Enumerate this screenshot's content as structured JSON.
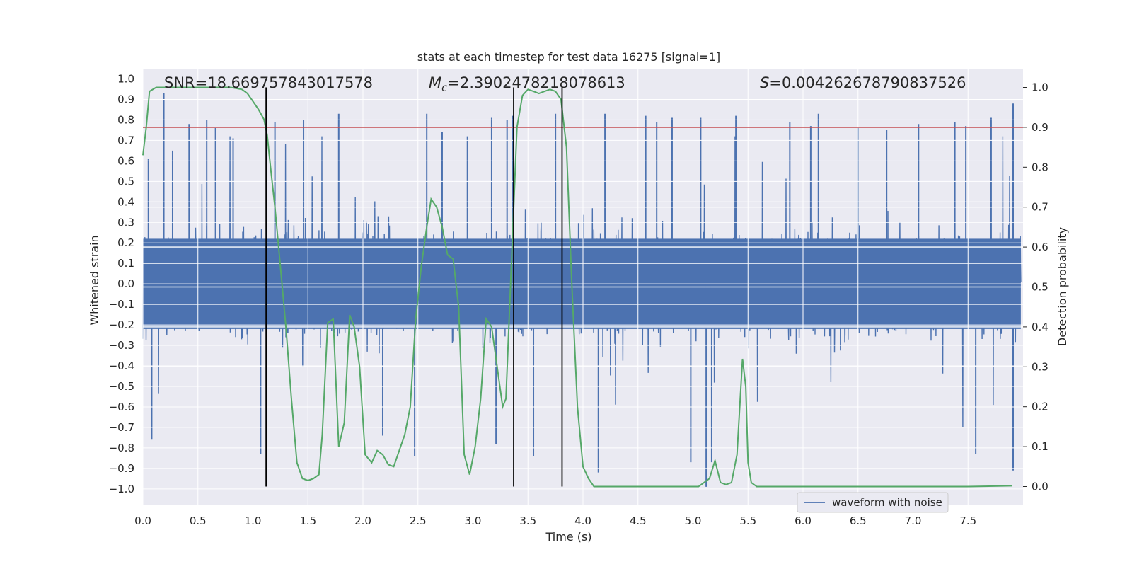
{
  "chart_data": {
    "type": "line",
    "title": "stats at each timestep for test data 16275 [signal=1]",
    "xlabel": "Time (s)",
    "ylabel": "Whitened strain",
    "y2label": "Detection probability",
    "xlim": [
      0.0,
      8.0
    ],
    "ylim": [
      -1.08,
      1.05
    ],
    "y2lim": [
      -0.047,
      1.047
    ],
    "xticks": [
      0.0,
      0.5,
      1.0,
      1.5,
      2.0,
      2.5,
      3.0,
      3.5,
      4.0,
      4.5,
      5.0,
      5.5,
      6.0,
      6.5,
      7.0,
      7.5
    ],
    "xtick_labels": [
      "0.0",
      "0.5",
      "1.0",
      "1.5",
      "2.0",
      "2.5",
      "3.0",
      "3.5",
      "4.0",
      "4.5",
      "5.0",
      "5.5",
      "6.0",
      "6.5",
      "7.0",
      "7.5"
    ],
    "yticks": [
      1.0,
      0.9,
      0.8,
      0.7,
      0.6,
      0.5,
      0.4,
      0.3,
      0.2,
      0.1,
      0.0,
      -0.1,
      -0.2,
      -0.3,
      -0.4,
      -0.5,
      -0.6,
      -0.7,
      -0.8,
      -0.9,
      -1.0
    ],
    "ytick_labels": [
      "1.0",
      "0.9",
      "0.8",
      "0.7",
      "0.6",
      "0.5",
      "0.4",
      "0.3",
      "0.2",
      "0.1",
      "0.0",
      "−0.1",
      "−0.2",
      "−0.3",
      "−0.4",
      "−0.5",
      "−0.6",
      "−0.7",
      "−0.8",
      "−0.9",
      "−1.0"
    ],
    "y2ticks": [
      1.0,
      0.9,
      0.8,
      0.7,
      0.6,
      0.5,
      0.4,
      0.3,
      0.2,
      0.1,
      0.0
    ],
    "y2tick_labels": [
      "1.0",
      "0.9",
      "0.8",
      "0.7",
      "0.6",
      "0.5",
      "0.4",
      "0.3",
      "0.2",
      "0.1",
      "0.0"
    ],
    "annotations": [
      {
        "name": "snr",
        "text": "SNR=18.669757843017578"
      },
      {
        "name": "mc",
        "prefix": "M",
        "sub": "c",
        "text": "=2.3902478218078613"
      },
      {
        "name": "s",
        "prefix": "S",
        "text": "=0.004262678790837526"
      }
    ],
    "threshold": {
      "value": 0.9,
      "axis": "y2",
      "color": "#c44e52"
    },
    "event_markers": [
      1.12,
      3.37,
      3.81
    ],
    "legend": {
      "label": "waveform with noise",
      "location": "lower-right"
    },
    "colors": {
      "waveform": "#4c72b0",
      "probability": "#55a868",
      "threshold": "#c44e52",
      "marker": "#000000",
      "background": "#eaeaf2",
      "grid": "#ffffff"
    },
    "series": [
      {
        "name": "waveform with noise",
        "axis": "y",
        "description_envelope": "dense noisy waveform, bulk within about ±0.3, peaks to about ±0.9",
        "spikes": [
          [
            0.05,
            0.61
          ],
          [
            0.08,
            -0.76
          ],
          [
            0.19,
            0.93
          ],
          [
            0.27,
            0.65
          ],
          [
            0.42,
            0.78
          ],
          [
            0.58,
            0.8
          ],
          [
            0.66,
            0.76
          ],
          [
            0.82,
            0.71
          ],
          [
            1.07,
            -0.83
          ],
          [
            1.2,
            0.79
          ],
          [
            1.46,
            0.8
          ],
          [
            1.78,
            0.83
          ],
          [
            2.18,
            -0.74
          ],
          [
            2.47,
            -0.84
          ],
          [
            2.58,
            0.83
          ],
          [
            2.72,
            0.74
          ],
          [
            2.95,
            0.72
          ],
          [
            3.17,
            0.81
          ],
          [
            3.21,
            -0.78
          ],
          [
            3.31,
            0.8
          ],
          [
            3.36,
            0.82
          ],
          [
            3.55,
            -0.84
          ],
          [
            3.75,
            0.83
          ],
          [
            4.14,
            -0.92
          ],
          [
            4.2,
            0.83
          ],
          [
            4.57,
            0.82
          ],
          [
            4.67,
            0.79
          ],
          [
            4.81,
            0.81
          ],
          [
            4.98,
            -0.87
          ],
          [
            5.07,
            0.81
          ],
          [
            5.12,
            -0.99
          ],
          [
            5.17,
            -0.87
          ],
          [
            5.39,
            0.82
          ],
          [
            5.88,
            0.79
          ],
          [
            6.07,
            0.77
          ],
          [
            6.14,
            0.83
          ],
          [
            6.5,
            0.76
          ],
          [
            6.76,
            0.75
          ],
          [
            7.05,
            0.78
          ],
          [
            7.38,
            0.79
          ],
          [
            7.48,
            0.77
          ],
          [
            7.57,
            -0.83
          ],
          [
            7.71,
            0.81
          ],
          [
            7.91,
            0.88
          ],
          [
            7.91,
            -0.91
          ]
        ]
      },
      {
        "name": "detection probability",
        "axis": "y2",
        "x": [
          0.0,
          0.03,
          0.06,
          0.12,
          0.2,
          0.3,
          0.4,
          0.5,
          0.6,
          0.7,
          0.8,
          0.9,
          0.95,
          1.0,
          1.05,
          1.1,
          1.13,
          1.16,
          1.2,
          1.25,
          1.3,
          1.35,
          1.4,
          1.45,
          1.5,
          1.55,
          1.6,
          1.63,
          1.68,
          1.73,
          1.78,
          1.83,
          1.88,
          1.92,
          1.97,
          2.02,
          2.08,
          2.13,
          2.18,
          2.23,
          2.28,
          2.33,
          2.38,
          2.43,
          2.48,
          2.53,
          2.58,
          2.62,
          2.67,
          2.72,
          2.77,
          2.82,
          2.87,
          2.92,
          2.97,
          3.02,
          3.07,
          3.12,
          3.17,
          3.22,
          3.27,
          3.3,
          3.35,
          3.4,
          3.45,
          3.5,
          3.55,
          3.6,
          3.65,
          3.7,
          3.75,
          3.8,
          3.85,
          3.9,
          3.95,
          4.0,
          4.05,
          4.1,
          4.15,
          4.25,
          4.5,
          4.8,
          5.0,
          5.05,
          5.1,
          5.15,
          5.2,
          5.25,
          5.3,
          5.35,
          5.4,
          5.45,
          5.48,
          5.5,
          5.53,
          5.58,
          5.7,
          6.0,
          6.5,
          7.0,
          7.5,
          7.9
        ],
        "values": [
          0.83,
          0.9,
          0.99,
          1.0,
          1.0,
          1.0,
          1.0,
          1.0,
          1.0,
          1.0,
          1.0,
          0.995,
          0.985,
          0.965,
          0.945,
          0.92,
          0.88,
          0.8,
          0.7,
          0.55,
          0.4,
          0.22,
          0.06,
          0.02,
          0.015,
          0.02,
          0.03,
          0.13,
          0.41,
          0.42,
          0.1,
          0.16,
          0.43,
          0.4,
          0.3,
          0.08,
          0.06,
          0.09,
          0.08,
          0.055,
          0.05,
          0.09,
          0.13,
          0.2,
          0.42,
          0.55,
          0.65,
          0.72,
          0.7,
          0.65,
          0.58,
          0.57,
          0.45,
          0.08,
          0.03,
          0.1,
          0.22,
          0.42,
          0.4,
          0.3,
          0.2,
          0.22,
          0.56,
          0.9,
          0.98,
          0.995,
          0.99,
          0.985,
          0.99,
          0.995,
          0.99,
          0.97,
          0.85,
          0.5,
          0.2,
          0.05,
          0.02,
          0.0,
          0.0,
          0.0,
          0.0,
          0.0,
          0.0,
          0.0,
          0.01,
          0.02,
          0.065,
          0.01,
          0.005,
          0.01,
          0.08,
          0.32,
          0.25,
          0.06,
          0.01,
          0.0,
          0.0,
          0.0,
          0.0,
          0.0,
          0.0,
          0.002
        ]
      }
    ]
  }
}
